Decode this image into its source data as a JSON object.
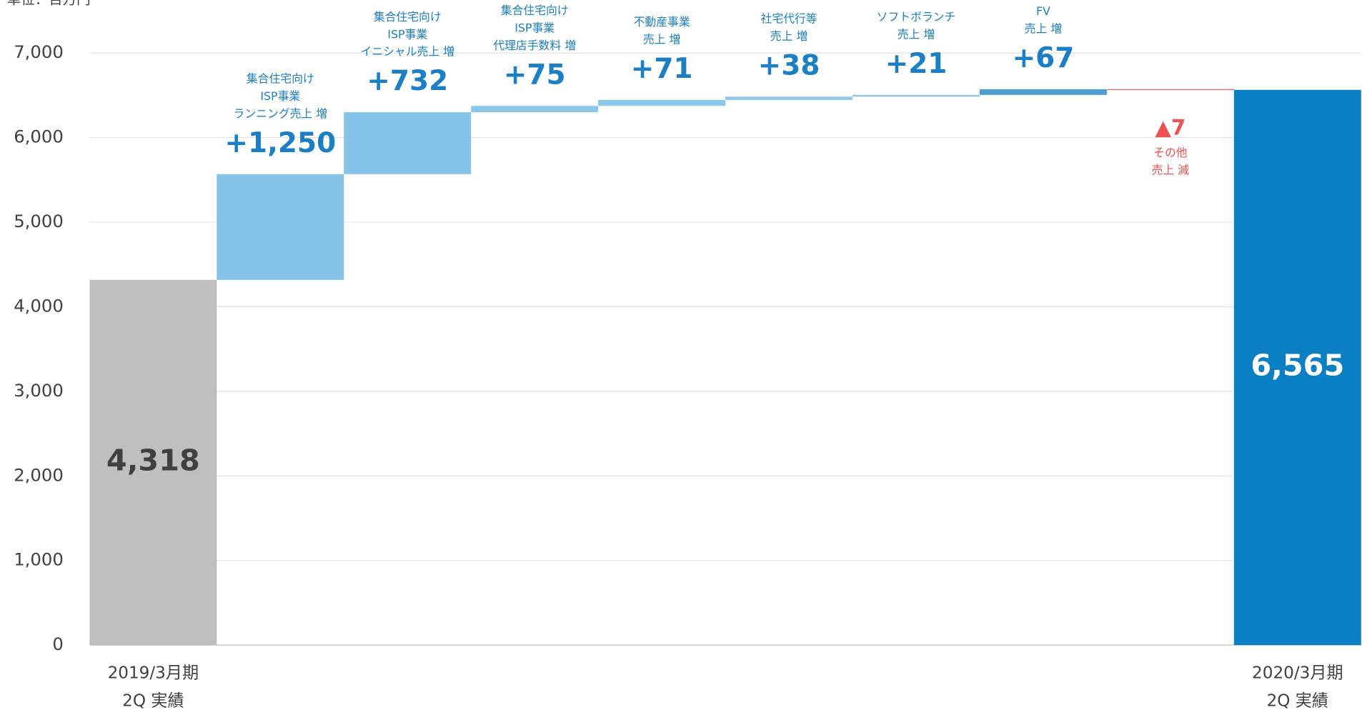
{
  "chart_data": {
    "type": "waterfall",
    "unit_label": "単位：百万円",
    "categories": [
      [
        "2019/3月期",
        "2Q 実績"
      ],
      null,
      null,
      null,
      null,
      null,
      null,
      null,
      null,
      [
        "2020/3月期",
        "2Q 実績"
      ]
    ],
    "measure": [
      "absolute",
      "relative",
      "relative",
      "relative",
      "relative",
      "relative",
      "relative",
      "relative",
      "relative",
      "absolute"
    ],
    "values": [
      4318,
      1250,
      732,
      75,
      71,
      38,
      21,
      67,
      -7,
      6565
    ],
    "value_labels": [
      "4,318",
      "+1,250",
      "+732",
      "+75",
      "+71",
      "+38",
      "+21",
      "+67",
      "▲7",
      "6,565"
    ],
    "annotations": [
      null,
      [
        "集合住宅向け",
        "ISP事業",
        "ランニング売上 増"
      ],
      [
        "集合住宅向け",
        "ISP事業",
        "イニシャル売上 増"
      ],
      [
        "集合住宅向け",
        "ISP事業",
        "代理店手数料 増"
      ],
      [
        "不動産事業",
        "売上 増"
      ],
      [
        "社宅代行等",
        "売上 増"
      ],
      [
        "ソフトボランチ",
        "売上 増"
      ],
      [
        "FV",
        "売上 増"
      ],
      [
        "その他",
        "売上 減"
      ],
      null
    ],
    "colors": [
      "#bfbfbf",
      "#85c4e8",
      "#85c4e8",
      "#8cc8ea",
      "#8cc8ea",
      "#8cc8ea",
      "#8cc8ea",
      "#4a9fd5",
      "#f06060",
      "#0a7fc4"
    ],
    "label_colors": [
      "#404040",
      "#1a7fc4",
      "#1a7fc4",
      "#1a7fc4",
      "#1a7fc4",
      "#1a7fc4",
      "#1a7fc4",
      "#1a7fc4",
      "#f05050",
      "#ffffff"
    ],
    "ylim": [
      0,
      7000
    ],
    "yticks": [
      0,
      {
        "value": 1000,
        "label": "1,000"
      },
      {
        "value": 2000,
        "label": "2,000"
      },
      {
        "value": 3000,
        "label": "3,000"
      },
      {
        "value": 4000,
        "label": "4,000"
      },
      {
        "value": 5000,
        "label": "5,000"
      },
      {
        "value": 6000,
        "label": "6,000"
      },
      {
        "value": 7000,
        "label": "7,000"
      }
    ],
    "grid": true
  }
}
